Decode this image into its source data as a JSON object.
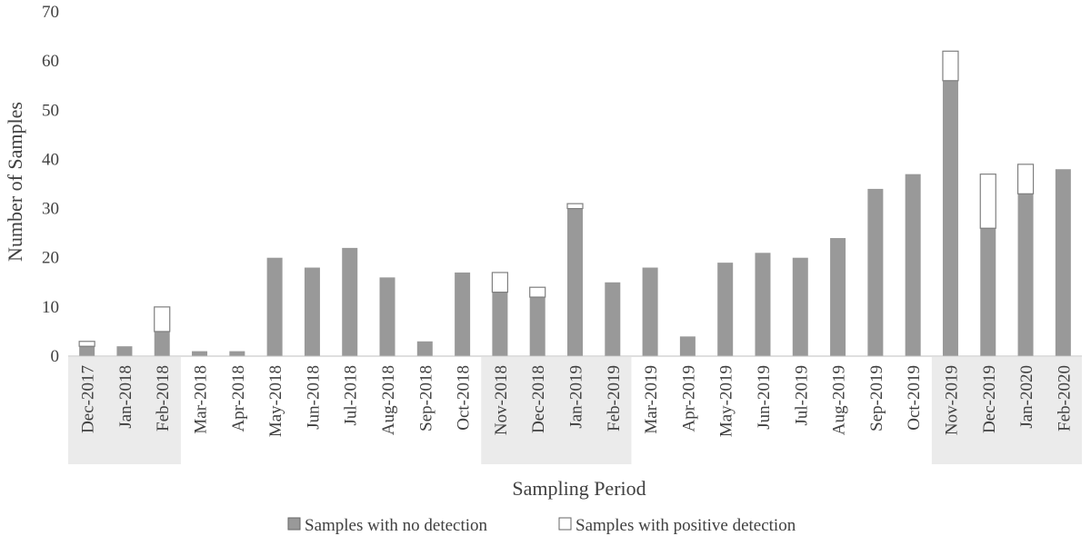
{
  "chart_data": {
    "type": "bar",
    "stacked": true,
    "title": "",
    "xlabel": "Sampling Period",
    "ylabel": "Number of Samples",
    "ylim": [
      0,
      70
    ],
    "yticks": [
      0,
      10,
      20,
      30,
      40,
      50,
      60,
      70
    ],
    "grid": false,
    "legend_position": "bottom",
    "categories": [
      "Dec-2017",
      "Jan-2018",
      "Feb-2018",
      "Mar-2018",
      "Apr-2018",
      "May-2018",
      "Jun-2018",
      "Jul-2018",
      "Aug-2018",
      "Sep-2018",
      "Oct-2018",
      "Nov-2018",
      "Dec-2018",
      "Jan-2019",
      "Feb-2019",
      "Mar-2019",
      "Apr-2019",
      "May-2019",
      "Jun-2019",
      "Jul-2019",
      "Aug-2019",
      "Sep-2019",
      "Oct-2019",
      "Nov-2019",
      "Dec-2019",
      "Jan-2020",
      "Feb-2020"
    ],
    "series": [
      {
        "name": "Samples with no detection",
        "color": "#999999",
        "values": [
          2,
          2,
          5,
          1,
          1,
          20,
          18,
          22,
          16,
          3,
          17,
          13,
          12,
          30,
          15,
          18,
          4,
          19,
          21,
          20,
          24,
          34,
          37,
          56,
          26,
          33,
          38
        ]
      },
      {
        "name": "Samples with positive detection",
        "color": "#ffffff",
        "values": [
          1,
          0,
          5,
          0,
          0,
          0,
          0,
          0,
          0,
          0,
          0,
          4,
          2,
          1,
          0,
          0,
          0,
          0,
          0,
          0,
          0,
          0,
          0,
          6,
          11,
          6,
          0
        ]
      }
    ],
    "shaded_periods": [
      {
        "from": "Dec-2017",
        "to": "Feb-2018",
        "color": "#ebebeb"
      },
      {
        "from": "Nov-2018",
        "to": "Feb-2019",
        "color": "#ebebeb"
      },
      {
        "from": "Nov-2019",
        "to": "Feb-2020",
        "color": "#ebebeb"
      }
    ]
  }
}
